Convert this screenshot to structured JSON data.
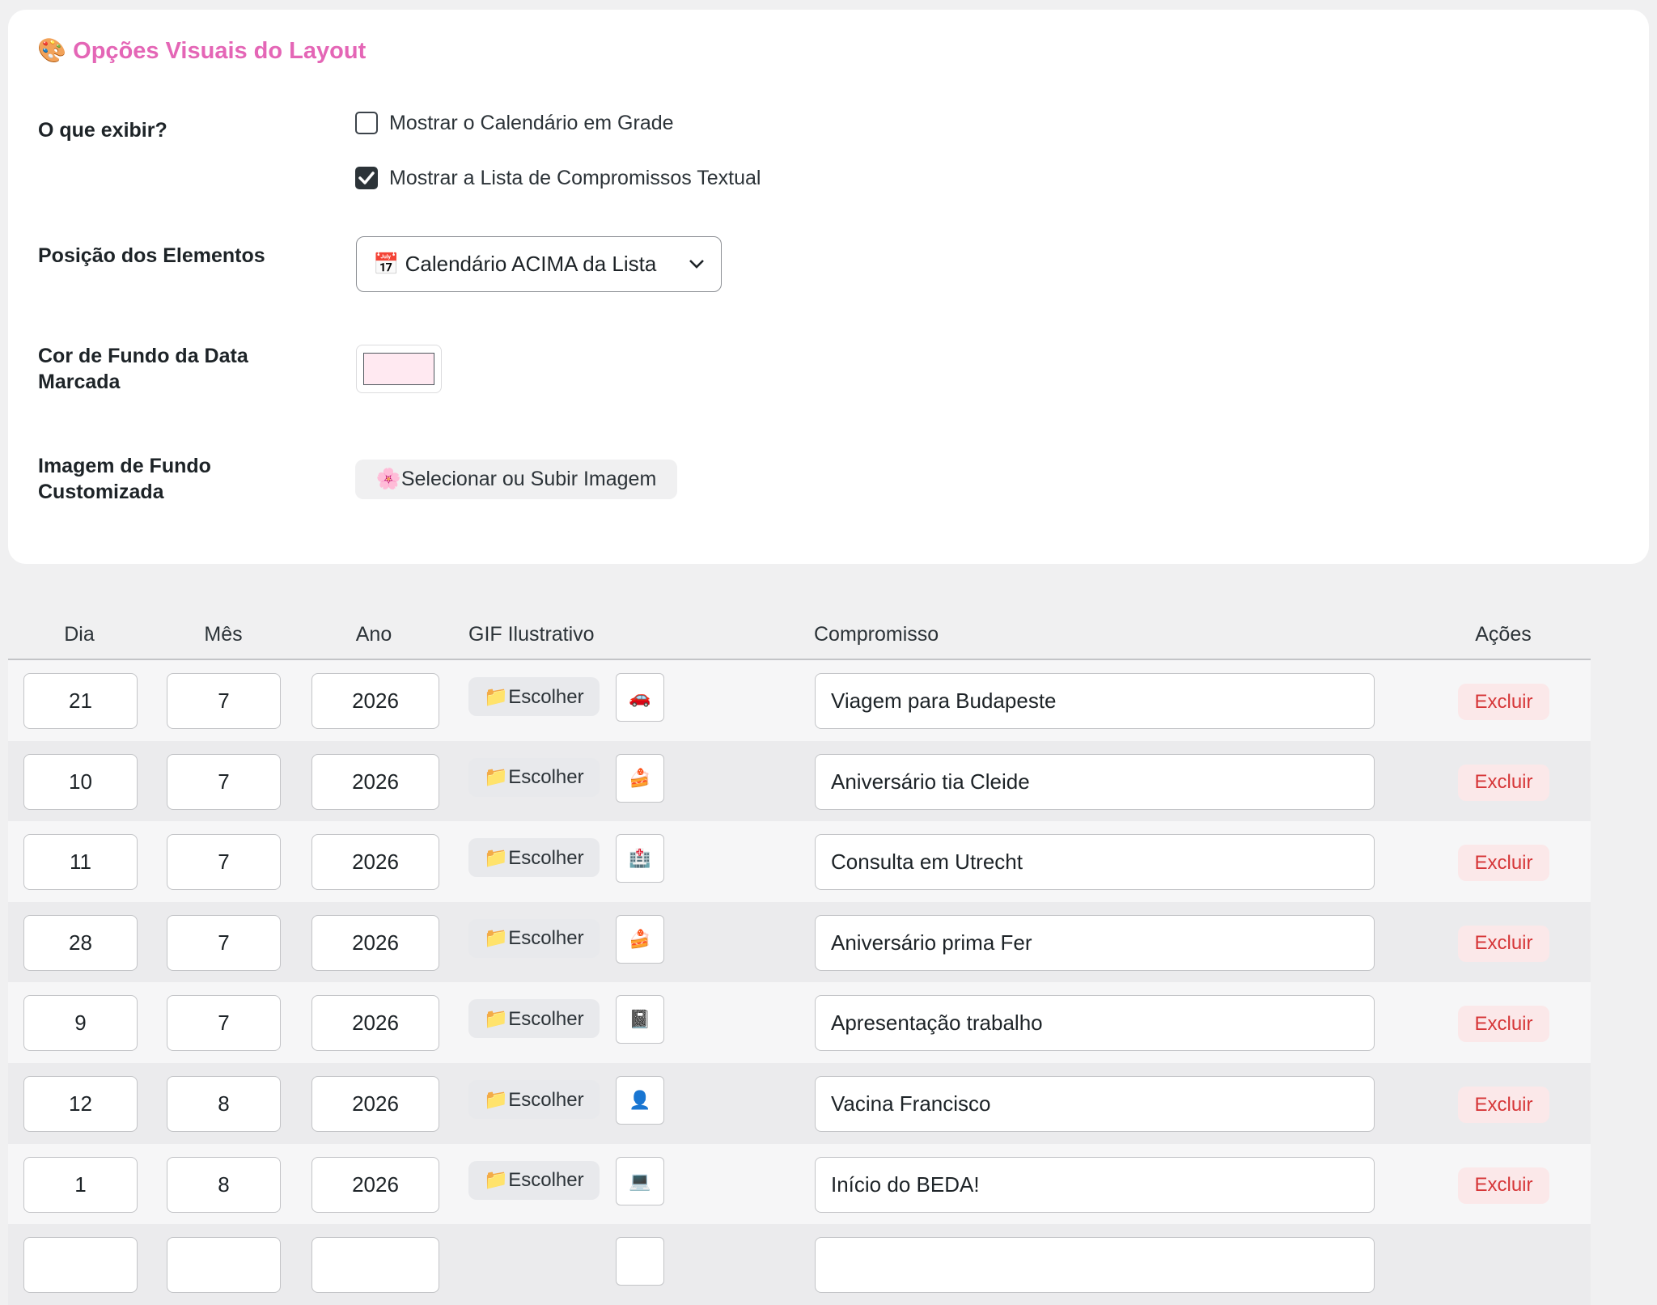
{
  "options": {
    "title": "🎨 Opções Visuais do Layout",
    "show_label": "O que exibir?",
    "checkboxes": [
      {
        "label": "Mostrar o Calendário em Grade",
        "checked": false
      },
      {
        "label": "Mostrar a Lista de Compromissos Textual",
        "checked": true
      }
    ],
    "position_label": "Posição dos Elementos",
    "position_value": "📅 Calendário ACIMA da Lista",
    "color_label": "Cor de Fundo da Data Marcada",
    "color_value": "#ffe9f1",
    "image_label": "Imagem de Fundo Customizada",
    "image_button": "🌸Selecionar ou Subir Imagem"
  },
  "table": {
    "headers": [
      "Dia",
      "Mês",
      "Ano",
      "GIF Ilustrativo",
      "Compromisso",
      "Ações"
    ],
    "choose_button": "📁Escolher",
    "delete_button": "Excluir",
    "rows": [
      {
        "dia": 21,
        "mes": 7,
        "ano": 2026,
        "gif": "🚗",
        "compromisso": "Viagem para Budapeste"
      },
      {
        "dia": 10,
        "mes": 7,
        "ano": 2026,
        "gif": "🍰",
        "compromisso": "Aniversário tia Cleide"
      },
      {
        "dia": 11,
        "mes": 7,
        "ano": 2026,
        "gif": "🏥",
        "compromisso": "Consulta em Utrecht"
      },
      {
        "dia": 28,
        "mes": 7,
        "ano": 2026,
        "gif": "🍰",
        "compromisso": "Aniversário prima Fer"
      },
      {
        "dia": 9,
        "mes": 7,
        "ano": 2026,
        "gif": "📓",
        "compromisso": "Apresentação trabalho"
      },
      {
        "dia": 12,
        "mes": 8,
        "ano": 2026,
        "gif": "👤",
        "compromisso": "Vacina Francisco"
      },
      {
        "dia": 1,
        "mes": 8,
        "ano": 2026,
        "gif": "💻",
        "compromisso": "Início do BEDA!"
      }
    ]
  }
}
